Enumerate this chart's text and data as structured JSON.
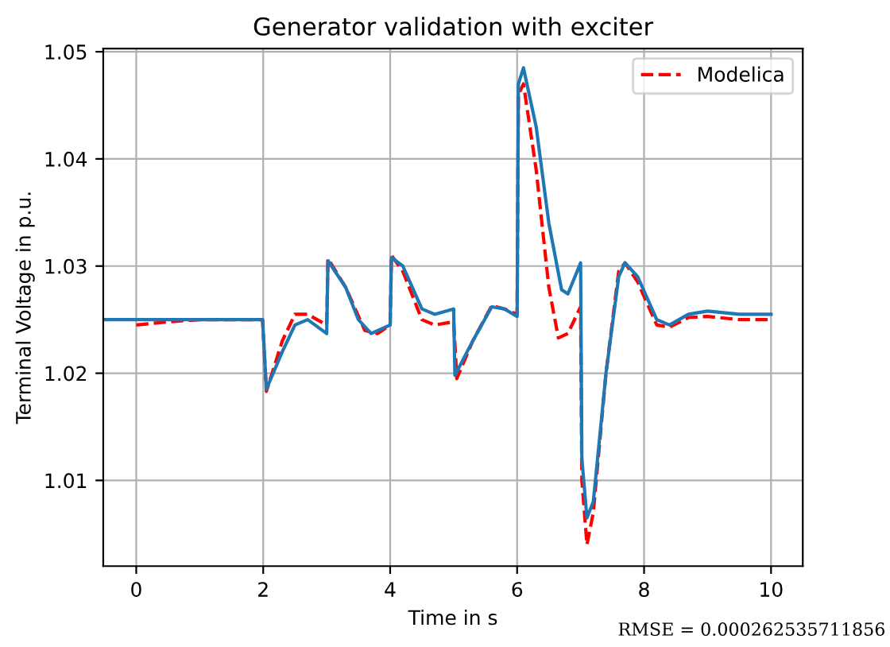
{
  "chart_data": {
    "type": "line",
    "title": "Generator validation with exciter",
    "xlabel": "Time in s",
    "ylabel": "Terminal Voltage in p.u.",
    "annotations": [
      "RMSE = 0.000262535711856"
    ],
    "series": [
      {
        "name": "Modelica",
        "color": "#ff0000",
        "line_style": "dashed",
        "x": [
          0,
          0.5,
          1.0,
          1.99,
          2.05,
          2.3,
          2.5,
          2.7,
          3.0,
          3.02,
          3.3,
          3.6,
          3.8,
          4.0,
          4.02,
          4.2,
          4.5,
          4.7,
          5.0,
          5.05,
          5.3,
          5.6,
          5.8,
          6.0,
          6.02,
          6.1,
          6.3,
          6.5,
          6.65,
          6.8,
          7.0,
          7.02,
          7.1,
          7.2,
          7.4,
          7.6,
          7.7,
          7.9,
          8.2,
          8.4,
          8.7,
          9.0,
          9.5,
          10.0
        ],
        "values": [
          1.0245,
          1.0248,
          1.025,
          1.025,
          1.0183,
          1.023,
          1.0255,
          1.0255,
          1.0245,
          1.0307,
          1.028,
          1.024,
          1.0237,
          1.0245,
          1.031,
          1.0295,
          1.025,
          1.0245,
          1.0248,
          1.0195,
          1.023,
          1.0263,
          1.026,
          1.0255,
          1.046,
          1.047,
          1.039,
          1.028,
          1.0233,
          1.0237,
          1.0262,
          1.01,
          1.004,
          1.007,
          1.02,
          1.0295,
          1.0303,
          1.0285,
          1.0245,
          1.0243,
          1.0252,
          1.0253,
          1.025,
          1.025
        ]
      },
      {
        "color": "#1f77b4",
        "line_style": "solid",
        "x": [
          -0.5,
          1.0,
          1.99,
          2.05,
          2.3,
          2.5,
          2.7,
          3.0,
          3.02,
          3.3,
          3.5,
          3.7,
          4.0,
          4.02,
          4.2,
          4.5,
          4.7,
          5.0,
          5.02,
          5.3,
          5.6,
          5.8,
          6.0,
          6.02,
          6.1,
          6.3,
          6.5,
          6.7,
          6.8,
          7.0,
          7.02,
          7.1,
          7.2,
          7.4,
          7.6,
          7.7,
          7.9,
          8.2,
          8.4,
          8.7,
          9.0,
          9.5,
          10.0
        ],
        "values": [
          1.025,
          1.025,
          1.025,
          1.0185,
          1.022,
          1.0245,
          1.025,
          1.0237,
          1.0305,
          1.028,
          1.025,
          1.0237,
          1.0245,
          1.0308,
          1.03,
          1.026,
          1.0255,
          1.026,
          1.0198,
          1.023,
          1.0262,
          1.026,
          1.0253,
          1.047,
          1.0485,
          1.043,
          1.034,
          1.0278,
          1.0274,
          1.0303,
          1.012,
          1.0065,
          1.008,
          1.02,
          1.029,
          1.0303,
          1.029,
          1.025,
          1.0245,
          1.0255,
          1.0258,
          1.0255,
          1.0255
        ]
      }
    ],
    "xlim": [
      -0.52,
      10.5
    ],
    "xticks": [
      0,
      2,
      4,
      6,
      8,
      10
    ],
    "ylim": [
      1.002,
      1.0503
    ],
    "yticks": [
      1.01,
      1.02,
      1.03,
      1.04,
      1.05
    ],
    "grid": true,
    "legend": "top right"
  }
}
